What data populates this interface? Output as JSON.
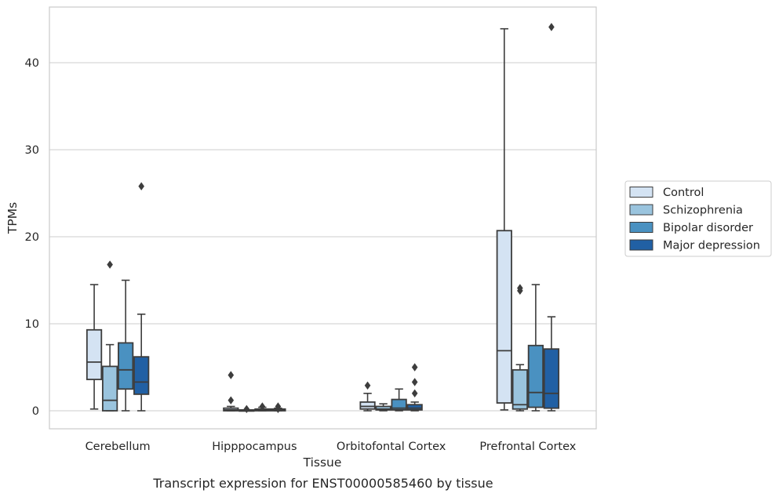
{
  "caption": "Transcript expression for ENST00000585460 by tissue",
  "chart_data": {
    "type": "box",
    "xlabel": "Tissue",
    "ylabel": "TPMs",
    "ylim": [
      -2.2,
      46.5
    ],
    "yticks": [
      0,
      10,
      20,
      30,
      40
    ],
    "grid": "horizontal",
    "legend_position": "right",
    "categories": [
      "Cerebellum",
      "Hipppocampus",
      "Orbitofontal Cortex",
      "Prefrontal Cortex"
    ],
    "series": [
      {
        "name": "Control",
        "color": "#d4e3f3",
        "boxes": [
          {
            "whisker_low": 0.2,
            "q1": 3.6,
            "median": 5.6,
            "q3": 9.3,
            "whisker_high": 14.5,
            "outliers": []
          },
          {
            "whisker_low": 0.0,
            "q1": 0.0,
            "median": 0.1,
            "q3": 0.3,
            "whisker_high": 0.5,
            "outliers": [
              4.1,
              1.2
            ]
          },
          {
            "whisker_low": 0.0,
            "q1": 0.2,
            "median": 0.5,
            "q3": 1.0,
            "whisker_high": 2.0,
            "outliers": [
              2.9
            ]
          },
          {
            "whisker_low": 0.1,
            "q1": 0.9,
            "median": 6.9,
            "q3": 20.7,
            "whisker_high": 43.9,
            "outliers": []
          }
        ]
      },
      {
        "name": "Schizophrenia",
        "color": "#9ac4de",
        "boxes": [
          {
            "whisker_low": 0.0,
            "q1": 0.0,
            "median": 1.2,
            "q3": 5.1,
            "whisker_high": 7.6,
            "outliers": [
              16.8
            ]
          },
          {
            "whisker_low": 0.0,
            "q1": 0.0,
            "median": 0.0,
            "q3": 0.1,
            "whisker_high": 0.1,
            "outliers": [
              0.2
            ]
          },
          {
            "whisker_low": 0.0,
            "q1": 0.1,
            "median": 0.2,
            "q3": 0.5,
            "whisker_high": 0.8,
            "outliers": []
          },
          {
            "whisker_low": 0.0,
            "q1": 0.2,
            "median": 0.7,
            "q3": 4.7,
            "whisker_high": 5.3,
            "outliers": [
              13.8,
              14.1
            ]
          }
        ]
      },
      {
        "name": "Bipolar disorder",
        "color": "#4a91c1",
        "boxes": [
          {
            "whisker_low": 0.0,
            "q1": 2.5,
            "median": 4.7,
            "q3": 7.8,
            "whisker_high": 15.0,
            "outliers": []
          },
          {
            "whisker_low": 0.0,
            "q1": 0.0,
            "median": 0.1,
            "q3": 0.2,
            "whisker_high": 0.4,
            "outliers": [
              0.5
            ]
          },
          {
            "whisker_low": 0.0,
            "q1": 0.1,
            "median": 0.3,
            "q3": 1.3,
            "whisker_high": 2.5,
            "outliers": []
          },
          {
            "whisker_low": 0.0,
            "q1": 0.4,
            "median": 2.1,
            "q3": 7.5,
            "whisker_high": 14.5,
            "outliers": []
          }
        ]
      },
      {
        "name": "Major depression",
        "color": "#2160a4",
        "boxes": [
          {
            "whisker_low": 0.0,
            "q1": 1.9,
            "median": 3.3,
            "q3": 6.2,
            "whisker_high": 11.1,
            "outliers": [
              25.8
            ]
          },
          {
            "whisker_low": 0.0,
            "q1": 0.0,
            "median": 0.1,
            "q3": 0.2,
            "whisker_high": 0.3,
            "outliers": [
              0.5,
              0.2
            ]
          },
          {
            "whisker_low": 0.0,
            "q1": 0.1,
            "median": 0.3,
            "q3": 0.7,
            "whisker_high": 1.0,
            "outliers": [
              2.0,
              3.3,
              5.0
            ]
          },
          {
            "whisker_low": 0.0,
            "q1": 0.3,
            "median": 2.0,
            "q3": 7.1,
            "whisker_high": 10.8,
            "outliers": [
              44.1
            ]
          }
        ]
      }
    ]
  }
}
